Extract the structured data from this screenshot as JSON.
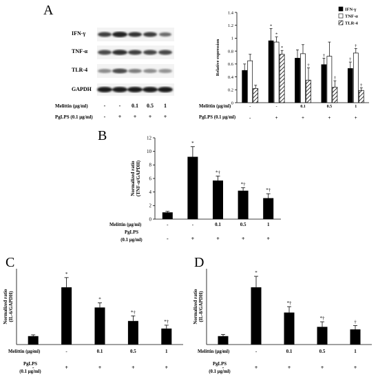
{
  "panel_letters": [
    "A",
    "B",
    "C",
    "D"
  ],
  "blot": {
    "bands": [
      "IFN-γ",
      "TNF-α",
      "TLR-4",
      "GAPDH"
    ],
    "treatment": {
      "melittin_label": "Melittin (μg/ml)",
      "melittin_values": [
        "-",
        "-",
        "0.1",
        "0.5",
        "1"
      ],
      "pglps_label": "PgLPS (0.1 μg/ml)",
      "pglps_values": [
        "-",
        "+",
        "+",
        "+",
        "+"
      ]
    }
  },
  "chart_data": [
    {
      "panel": "A",
      "type": "bar",
      "ylabel": "Relative expression",
      "ylim": [
        0,
        1.4
      ],
      "yticks": [
        "0",
        "0.2",
        "0.4",
        "0.6",
        "0.8",
        "1",
        "1.2",
        "1.4"
      ],
      "categories": [
        "",
        "",
        "0.1",
        "0.5",
        "1"
      ],
      "series": [
        {
          "name": "IFN-γ",
          "color": "#000000",
          "pattern": "solid",
          "values": [
            0.5,
            0.96,
            0.69,
            0.59,
            0.53
          ],
          "errors": [
            0.1,
            0.19,
            0.13,
            0.1,
            0.1
          ],
          "marks": [
            "",
            "*",
            "",
            "†",
            "†"
          ]
        },
        {
          "name": "TNF-α",
          "color": "#ffffff",
          "pattern": "open",
          "values": [
            0.65,
            0.94,
            0.76,
            0.72,
            0.77
          ],
          "errors": [
            0.1,
            0.08,
            0.14,
            0.22,
            0.07
          ],
          "marks": [
            "",
            "*",
            "",
            "",
            "†"
          ]
        },
        {
          "name": "TLR-4",
          "color": "#ffffff",
          "pattern": "hatched",
          "values": [
            0.22,
            0.75,
            0.35,
            0.24,
            0.19
          ],
          "errors": [
            0.05,
            0.06,
            0.19,
            0.1,
            0.04
          ],
          "marks": [
            "",
            "*",
            "†",
            "†",
            "†"
          ]
        }
      ],
      "treatment": {
        "melittin_label": "Melittin (μg/ml)",
        "melittin_values": [
          "-",
          "-",
          "0.1",
          "0.5",
          "1"
        ],
        "pglps_label": "PgLPS (0.1 μg/ml)",
        "pglps_values": [
          "-",
          "+",
          "+",
          "+",
          "+"
        ]
      },
      "legend": "top-right"
    },
    {
      "panel": "B",
      "type": "bar",
      "ylabel": "Normalized ratio\n(TNF-α/GAPDH)",
      "ylim": [
        0,
        12
      ],
      "yticks": [
        "0",
        "2",
        "4",
        "6",
        "8",
        "10",
        "12"
      ],
      "categories": [
        "",
        "",
        "0.1",
        "0.5",
        "1"
      ],
      "values": [
        1.0,
        9.2,
        5.7,
        4.2,
        3.1
      ],
      "errors": [
        0.15,
        1.5,
        0.65,
        0.45,
        0.65
      ],
      "marks": [
        "",
        "*",
        "*†",
        "*†",
        "*†"
      ],
      "treatment": {
        "melittin_label": "Melittin (μg/ml)",
        "melittin_values": [
          "-",
          "-",
          "0.1",
          "0.5",
          "1"
        ],
        "pglps_label": "PgLPS\n(0.1 μg/ml)",
        "pglps_values": [
          "-",
          "+",
          "+",
          "+",
          "+"
        ]
      }
    },
    {
      "panel": "C",
      "type": "bar",
      "ylabel": "Normalized ratio\n(IL-6/GAPDH)",
      "ylim": [
        0,
        9
      ],
      "yticks": [],
      "categories": [
        "",
        "",
        "0.1",
        "0.5",
        "1"
      ],
      "values": [
        1.0,
        6.8,
        4.4,
        2.8,
        1.9
      ],
      "errors": [
        0.15,
        1.15,
        0.55,
        0.6,
        0.4
      ],
      "marks": [
        "",
        "*",
        "*",
        "*†",
        "*†"
      ],
      "treatment": {
        "melittin_label": "Melittin (μg/ml)",
        "melittin_values": [
          "-",
          "-",
          "0.1",
          "0.5",
          "1"
        ],
        "pglps_label": "PgLPS\n(0.1 μg/ml)",
        "pglps_values": [
          "-",
          "+",
          "+",
          "+",
          "+"
        ]
      }
    },
    {
      "panel": "D",
      "type": "bar",
      "ylabel": "Normalized ratio\n(IL-8/GAPDH)",
      "ylim": [
        0,
        9
      ],
      "yticks": [],
      "categories": [
        "",
        "",
        "0.1",
        "0.5",
        "1"
      ],
      "values": [
        1.0,
        6.8,
        3.8,
        2.1,
        1.8
      ],
      "errors": [
        0.2,
        1.3,
        0.7,
        0.6,
        0.45
      ],
      "marks": [
        "",
        "*",
        "*†",
        "*†",
        "†"
      ],
      "treatment": {
        "melittin_label": "Melittin (μg/ml)",
        "melittin_values": [
          "-",
          "-",
          "0.1",
          "0.5",
          "1"
        ],
        "pglps_label": "PgLPS\n(0.1 μg/ml)",
        "pglps_values": [
          "-",
          "+",
          "+",
          "+",
          "+"
        ]
      }
    }
  ]
}
